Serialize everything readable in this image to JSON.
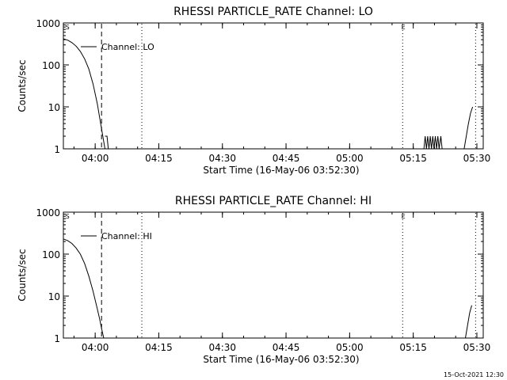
{
  "footer": {
    "timestamp": "15-Oct-2021 12:30"
  },
  "chart_data": [
    {
      "type": "line",
      "title": "RHESSI PARTICLE_RATE Channel: LO",
      "xlabel": "Start Time (16-May-06 03:52:30)",
      "ylabel": "Counts/sec",
      "yscale": "log",
      "ylim": [
        1,
        1000
      ],
      "xlim_minutes": [
        0,
        99
      ],
      "x_ticks": [
        {
          "t": 7.5,
          "label": "04:00"
        },
        {
          "t": 22.5,
          "label": "04:15"
        },
        {
          "t": 37.5,
          "label": "04:30"
        },
        {
          "t": 52.5,
          "label": "04:45"
        },
        {
          "t": 67.5,
          "label": "05:00"
        },
        {
          "t": 82.5,
          "label": "05:15"
        },
        {
          "t": 97.5,
          "label": "05:30"
        }
      ],
      "y_ticks": [
        {
          "v": 1,
          "label": "1"
        },
        {
          "v": 10,
          "label": "10"
        },
        {
          "v": 100,
          "label": "100"
        },
        {
          "v": 1000,
          "label": "1000"
        }
      ],
      "legend": "Channel: LO",
      "markers": {
        "S": 0.3,
        "E": 79.5
      },
      "vlines": [
        {
          "t": 9.0,
          "style": "dashed"
        },
        {
          "t": 18.5,
          "style": "dotted"
        },
        {
          "t": 80.0,
          "style": "dotted"
        },
        {
          "t": 97.2,
          "style": "dotted"
        }
      ],
      "series": [
        {
          "name": "LO",
          "points": [
            [
              0,
              420
            ],
            [
              1,
              390
            ],
            [
              2,
              340
            ],
            [
              3,
              280
            ],
            [
              4,
              210
            ],
            [
              5,
              140
            ],
            [
              6,
              80
            ],
            [
              7,
              35
            ],
            [
              8,
              12
            ],
            [
              8.5,
              6
            ],
            [
              9,
              3
            ],
            [
              9.5,
              1.5
            ],
            [
              9.8,
              1
            ]
          ]
        },
        {
          "name": "LO-tail",
          "points": [
            [
              9.8,
              2
            ],
            [
              10.3,
              2
            ],
            [
              10.6,
              1
            ]
          ]
        },
        {
          "name": "LO-noise",
          "points": [
            [
              85,
              1
            ],
            [
              85.3,
              2
            ],
            [
              85.6,
              1
            ],
            [
              85.9,
              2
            ],
            [
              86.2,
              1
            ],
            [
              86.5,
              2
            ],
            [
              86.8,
              1
            ],
            [
              87.1,
              2
            ],
            [
              87.4,
              1
            ],
            [
              87.7,
              2
            ],
            [
              88.0,
              1
            ],
            [
              88.3,
              2
            ],
            [
              88.6,
              1
            ],
            [
              89.0,
              2
            ],
            [
              89.3,
              1
            ]
          ]
        },
        {
          "name": "LO-rise",
          "points": [
            [
              94.5,
              1
            ],
            [
              95,
              2
            ],
            [
              95.5,
              4
            ],
            [
              96,
              7
            ],
            [
              96.5,
              10
            ]
          ]
        }
      ]
    },
    {
      "type": "line",
      "title": "RHESSI PARTICLE_RATE Channel: HI",
      "xlabel": "Start Time (16-May-06 03:52:30)",
      "ylabel": "Counts/sec",
      "yscale": "log",
      "ylim": [
        1,
        1000
      ],
      "xlim_minutes": [
        0,
        99
      ],
      "x_ticks": [
        {
          "t": 7.5,
          "label": "04:00"
        },
        {
          "t": 22.5,
          "label": "04:15"
        },
        {
          "t": 37.5,
          "label": "04:30"
        },
        {
          "t": 52.5,
          "label": "04:45"
        },
        {
          "t": 67.5,
          "label": "05:00"
        },
        {
          "t": 82.5,
          "label": "05:15"
        },
        {
          "t": 97.5,
          "label": "05:30"
        }
      ],
      "y_ticks": [
        {
          "v": 1,
          "label": "1"
        },
        {
          "v": 10,
          "label": "10"
        },
        {
          "v": 100,
          "label": "100"
        },
        {
          "v": 1000,
          "label": "1000"
        }
      ],
      "legend": "Channel: HI",
      "markers": {
        "S": 0.3,
        "E": 79.5
      },
      "vlines": [
        {
          "t": 9.0,
          "style": "dashed"
        },
        {
          "t": 18.5,
          "style": "dotted"
        },
        {
          "t": 80.0,
          "style": "dotted"
        },
        {
          "t": 97.2,
          "style": "dotted"
        }
      ],
      "series": [
        {
          "name": "HI",
          "points": [
            [
              0,
              230
            ],
            [
              1,
              210
            ],
            [
              2,
              180
            ],
            [
              3,
              140
            ],
            [
              4,
              100
            ],
            [
              5,
              60
            ],
            [
              6,
              30
            ],
            [
              7,
              13
            ],
            [
              8,
              5
            ],
            [
              8.5,
              3
            ],
            [
              9,
              1.7
            ],
            [
              9.5,
              1
            ]
          ]
        },
        {
          "name": "HI-rise",
          "points": [
            [
              94.8,
              1
            ],
            [
              95.3,
              2
            ],
            [
              95.8,
              4
            ],
            [
              96.3,
              6
            ]
          ]
        }
      ]
    }
  ]
}
